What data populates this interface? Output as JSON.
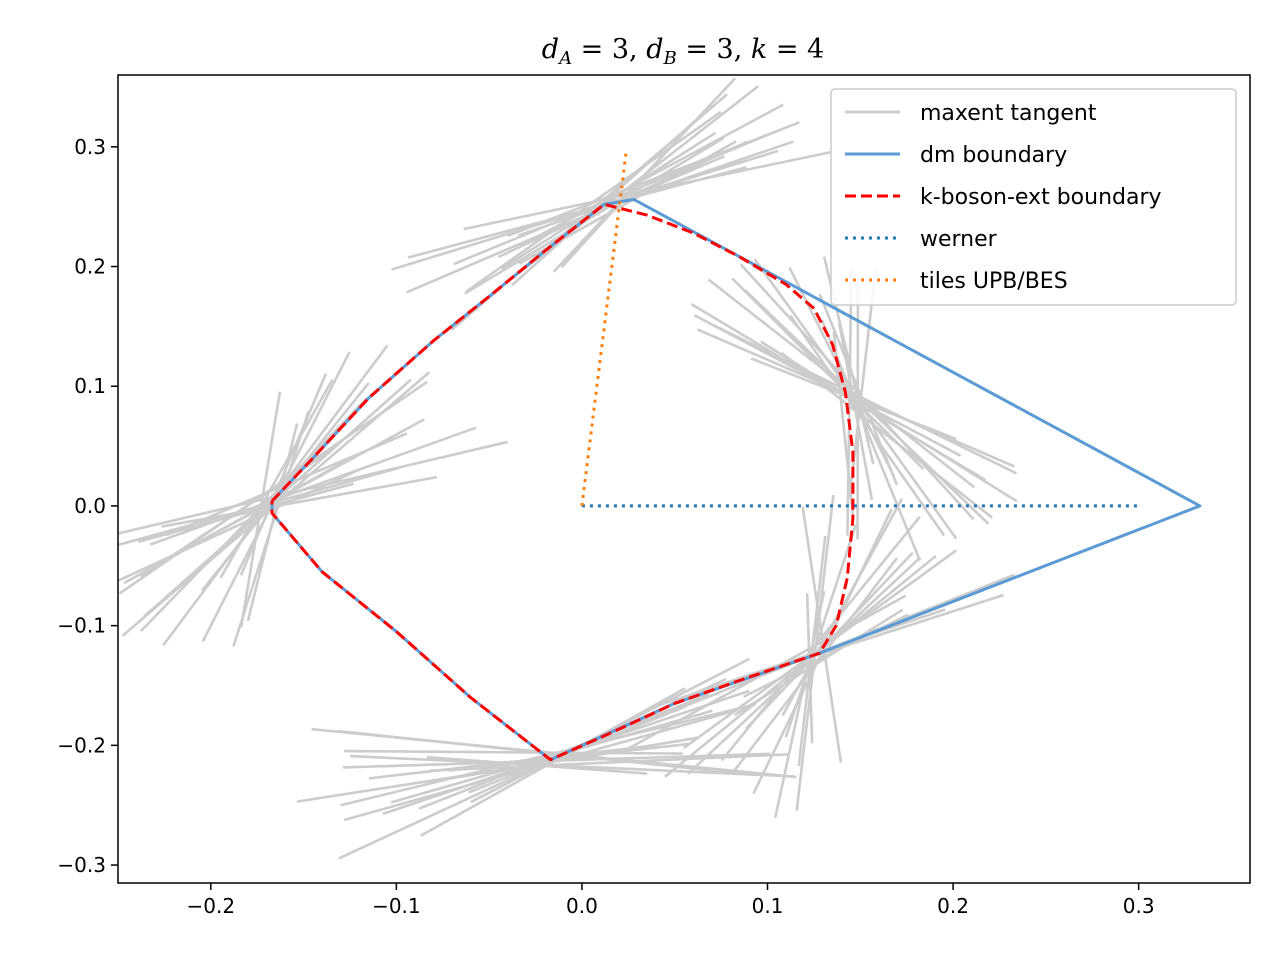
{
  "chart_data": {
    "type": "line",
    "title": "d_A = 3, d_B = 3, k = 4",
    "title_parts": {
      "d_A_symbol": "d",
      "d_A_sub": "A",
      "d_A_value": " = 3, ",
      "d_B_symbol": "d",
      "d_B_sub": "B",
      "d_B_value": " = 3, ",
      "k_symbol": "k",
      "k_value": " = 4"
    },
    "xlabel": "",
    "ylabel": "",
    "xlim": [
      -0.25,
      0.36
    ],
    "ylim": [
      -0.315,
      0.36
    ],
    "x_ticks": [
      -0.2,
      -0.1,
      0.0,
      0.1,
      0.2,
      0.3
    ],
    "x_tick_labels": [
      "−0.2",
      "−0.1",
      "0.0",
      "0.1",
      "0.2",
      "0.3"
    ],
    "y_ticks": [
      -0.3,
      -0.2,
      -0.1,
      0.0,
      0.1,
      0.2,
      0.3
    ],
    "y_tick_labels": [
      "−0.3",
      "−0.2",
      "−0.1",
      "0.0",
      "0.1",
      "0.2",
      "0.3"
    ],
    "grid": false,
    "legend_position": "top-right",
    "colors": {
      "tangent": "#cccccc",
      "dm": "#5b9bd5",
      "kboson": "#ff0000",
      "werner": "#1f77b4",
      "tiles": "#ff7f0e"
    },
    "series": [
      {
        "name": "maxent tangent",
        "style": "solid",
        "anchors": [
          {
            "x": 0.012,
            "y": 0.252,
            "from_deg": 200,
            "to_deg": 240,
            "count": 18
          },
          {
            "x": -0.167,
            "y": 0.004,
            "from_deg": 15,
            "to_deg": 85,
            "count": 22
          },
          {
            "x": -0.017,
            "y": -0.212,
            "from_deg": -10,
            "to_deg": 40,
            "count": 20
          },
          {
            "x": 0.128,
            "y": -0.123,
            "from_deg": 25,
            "to_deg": 95,
            "count": 20
          },
          {
            "x": 0.145,
            "y": 0.09,
            "from_deg": 85,
            "to_deg": 150,
            "count": 22
          }
        ]
      },
      {
        "name": "dm boundary",
        "style": "solid",
        "points": [
          [
            -0.167,
            0.004
          ],
          [
            -0.145,
            0.04
          ],
          [
            -0.115,
            0.09
          ],
          [
            -0.08,
            0.138
          ],
          [
            -0.05,
            0.175
          ],
          [
            -0.02,
            0.213
          ],
          [
            0.012,
            0.252
          ],
          [
            0.028,
            0.256
          ],
          [
            0.333,
            0.0
          ],
          [
            0.128,
            -0.123
          ],
          [
            0.05,
            -0.165
          ],
          [
            -0.017,
            -0.212
          ],
          [
            -0.06,
            -0.16
          ],
          [
            -0.1,
            -0.105
          ],
          [
            -0.14,
            -0.055
          ],
          [
            -0.167,
            -0.006
          ],
          [
            -0.167,
            0.004
          ]
        ]
      },
      {
        "name": "k-boson-ext boundary",
        "style": "dashed",
        "points": [
          [
            -0.167,
            0.004
          ],
          [
            -0.145,
            0.04
          ],
          [
            -0.115,
            0.09
          ],
          [
            -0.08,
            0.138
          ],
          [
            -0.05,
            0.175
          ],
          [
            -0.02,
            0.213
          ],
          [
            0.012,
            0.252
          ],
          [
            0.035,
            0.243
          ],
          [
            0.06,
            0.228
          ],
          [
            0.085,
            0.208
          ],
          [
            0.11,
            0.185
          ],
          [
            0.125,
            0.165
          ],
          [
            0.135,
            0.135
          ],
          [
            0.142,
            0.095
          ],
          [
            0.146,
            0.045
          ],
          [
            0.146,
            -0.01
          ],
          [
            0.143,
            -0.06
          ],
          [
            0.137,
            -0.1
          ],
          [
            0.128,
            -0.123
          ],
          [
            0.09,
            -0.143
          ],
          [
            0.05,
            -0.165
          ],
          [
            0.015,
            -0.19
          ],
          [
            -0.017,
            -0.212
          ],
          [
            -0.06,
            -0.16
          ],
          [
            -0.1,
            -0.105
          ],
          [
            -0.14,
            -0.055
          ],
          [
            -0.167,
            -0.006
          ],
          [
            -0.167,
            0.004
          ]
        ]
      },
      {
        "name": "werner",
        "style": "dotted",
        "points": [
          [
            0.0,
            0.0
          ],
          [
            0.3,
            0.0
          ]
        ]
      },
      {
        "name": "tiles UPB/BES",
        "style": "dotted",
        "points": [
          [
            0.0,
            0.0
          ],
          [
            0.024,
            0.298
          ]
        ]
      }
    ]
  }
}
